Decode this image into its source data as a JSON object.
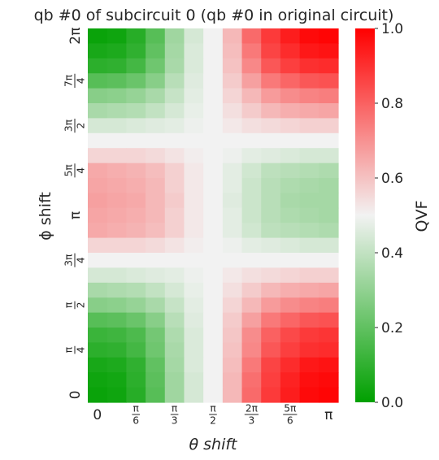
{
  "chart_data": {
    "type": "heatmap",
    "title": "qb #0 of subcircuit 0 (qb #0 in original circuit)",
    "xlabel": "θ shift",
    "ylabel": "ϕ shift",
    "colorbar_label": "QVF",
    "colorbar_range": [
      0.0,
      1.0
    ],
    "colorbar_ticks": [
      "0.0",
      "0.2",
      "0.4",
      "0.6",
      "0.8",
      "1.0"
    ],
    "colormap": [
      "#00a000",
      "#f2f2f2",
      "#ff0000"
    ],
    "x_tick_labels": [
      "0",
      "π/6",
      "π/3",
      "π/2",
      "2π/3",
      "5π/6",
      "π"
    ],
    "y_tick_labels": [
      "0",
      "π/4",
      "π/2",
      "3π/4",
      "π",
      "5π/4",
      "3π/2",
      "7π/4",
      "2π"
    ],
    "x_values": [
      0,
      0.0833,
      0.1667,
      0.25,
      0.3333,
      0.4167,
      0.5,
      0.5833,
      0.6667,
      0.75,
      0.8333,
      0.9167,
      1.0
    ],
    "y_values": [
      0,
      0.0833,
      0.1667,
      0.25,
      0.3333,
      0.4167,
      0.5,
      0.5833,
      0.6667,
      0.75,
      0.8333,
      0.9167,
      1.0,
      1.0833,
      1.1667,
      1.25,
      1.3333,
      1.4167,
      1.5,
      1.5833,
      1.6667,
      1.75,
      1.8333,
      1.9167,
      2.0
    ],
    "value_units": "x and y in multiples of π",
    "rows_top_to_bottom": [
      [
        0.02,
        0.03,
        0.08,
        0.18,
        0.33,
        0.44,
        0.5,
        0.62,
        0.78,
        0.88,
        0.94,
        0.98,
        0.99
      ],
      [
        0.05,
        0.06,
        0.1,
        0.2,
        0.34,
        0.45,
        0.5,
        0.61,
        0.75,
        0.86,
        0.91,
        0.95,
        0.96
      ],
      [
        0.09,
        0.1,
        0.14,
        0.23,
        0.35,
        0.45,
        0.5,
        0.6,
        0.72,
        0.82,
        0.87,
        0.9,
        0.91
      ],
      [
        0.18,
        0.19,
        0.22,
        0.28,
        0.38,
        0.46,
        0.5,
        0.58,
        0.67,
        0.75,
        0.79,
        0.82,
        0.83
      ],
      [
        0.28,
        0.29,
        0.31,
        0.35,
        0.41,
        0.47,
        0.5,
        0.56,
        0.62,
        0.68,
        0.71,
        0.73,
        0.74
      ],
      [
        0.35,
        0.36,
        0.37,
        0.4,
        0.44,
        0.48,
        0.5,
        0.54,
        0.58,
        0.62,
        0.64,
        0.65,
        0.66
      ],
      [
        0.44,
        0.44,
        0.45,
        0.46,
        0.47,
        0.49,
        0.5,
        0.52,
        0.54,
        0.55,
        0.56,
        0.57,
        0.57
      ],
      [
        0.5,
        0.5,
        0.5,
        0.5,
        0.5,
        0.5,
        0.5,
        0.5,
        0.5,
        0.5,
        0.5,
        0.5,
        0.5
      ],
      [
        0.56,
        0.56,
        0.56,
        0.55,
        0.53,
        0.51,
        0.5,
        0.49,
        0.47,
        0.46,
        0.45,
        0.44,
        0.44
      ],
      [
        0.65,
        0.64,
        0.63,
        0.61,
        0.57,
        0.52,
        0.5,
        0.47,
        0.43,
        0.39,
        0.38,
        0.37,
        0.36
      ],
      [
        0.66,
        0.65,
        0.64,
        0.62,
        0.57,
        0.52,
        0.5,
        0.47,
        0.42,
        0.38,
        0.36,
        0.35,
        0.34
      ],
      [
        0.67,
        0.66,
        0.65,
        0.62,
        0.58,
        0.52,
        0.5,
        0.46,
        0.42,
        0.38,
        0.35,
        0.34,
        0.34
      ],
      [
        0.66,
        0.65,
        0.64,
        0.62,
        0.57,
        0.52,
        0.5,
        0.47,
        0.42,
        0.38,
        0.36,
        0.35,
        0.34
      ],
      [
        0.65,
        0.64,
        0.63,
        0.61,
        0.57,
        0.52,
        0.5,
        0.47,
        0.43,
        0.39,
        0.38,
        0.37,
        0.36
      ],
      [
        0.56,
        0.56,
        0.56,
        0.55,
        0.53,
        0.51,
        0.5,
        0.49,
        0.47,
        0.46,
        0.45,
        0.44,
        0.44
      ],
      [
        0.5,
        0.5,
        0.5,
        0.5,
        0.5,
        0.5,
        0.5,
        0.5,
        0.5,
        0.5,
        0.5,
        0.5,
        0.5
      ],
      [
        0.44,
        0.44,
        0.45,
        0.46,
        0.47,
        0.49,
        0.5,
        0.52,
        0.54,
        0.55,
        0.56,
        0.57,
        0.57
      ],
      [
        0.35,
        0.36,
        0.37,
        0.4,
        0.44,
        0.48,
        0.5,
        0.54,
        0.58,
        0.62,
        0.64,
        0.65,
        0.66
      ],
      [
        0.28,
        0.29,
        0.31,
        0.35,
        0.41,
        0.47,
        0.5,
        0.56,
        0.62,
        0.68,
        0.71,
        0.73,
        0.74
      ],
      [
        0.18,
        0.19,
        0.22,
        0.28,
        0.38,
        0.46,
        0.5,
        0.58,
        0.67,
        0.75,
        0.79,
        0.82,
        0.83
      ],
      [
        0.12,
        0.13,
        0.16,
        0.24,
        0.36,
        0.45,
        0.5,
        0.59,
        0.71,
        0.8,
        0.85,
        0.88,
        0.89
      ],
      [
        0.09,
        0.1,
        0.14,
        0.23,
        0.35,
        0.45,
        0.5,
        0.6,
        0.72,
        0.82,
        0.87,
        0.9,
        0.91
      ],
      [
        0.05,
        0.06,
        0.1,
        0.2,
        0.34,
        0.45,
        0.5,
        0.61,
        0.75,
        0.86,
        0.91,
        0.95,
        0.96
      ],
      [
        0.03,
        0.04,
        0.09,
        0.19,
        0.33,
        0.44,
        0.5,
        0.62,
        0.77,
        0.87,
        0.93,
        0.97,
        0.98
      ],
      [
        0.02,
        0.03,
        0.08,
        0.18,
        0.33,
        0.44,
        0.5,
        0.62,
        0.78,
        0.88,
        0.94,
        0.98,
        0.99
      ]
    ]
  }
}
